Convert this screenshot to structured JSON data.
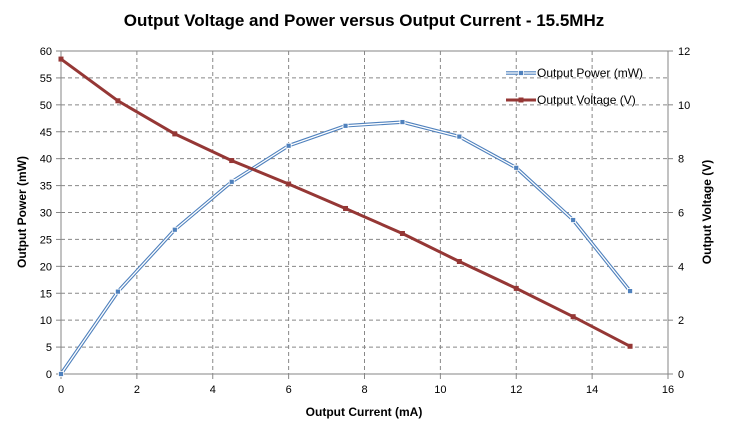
{
  "chart_data": {
    "type": "line",
    "title": "Output Voltage and Power versus Output Current - 15.5MHz",
    "xlabel": "Output Current (mA)",
    "ylabel_left": "Output Power (mW)",
    "ylabel_right": "Output Voltage (V)",
    "xlim": [
      0,
      16
    ],
    "ylim_left": [
      0,
      60
    ],
    "ylim_right": [
      0,
      12
    ],
    "x_ticks": [
      "0",
      "2",
      "4",
      "6",
      "8",
      "10",
      "12",
      "14",
      "16"
    ],
    "y_left_ticks": [
      "0",
      "5",
      "10",
      "15",
      "20",
      "25",
      "30",
      "35",
      "40",
      "45",
      "50",
      "55",
      "60"
    ],
    "y_right_ticks": [
      "0",
      "2",
      "4",
      "6",
      "8",
      "10",
      "12"
    ],
    "grid": true,
    "legend_position": "top-right",
    "x": [
      0,
      1.5,
      3,
      4.5,
      6,
      7.5,
      9,
      10.5,
      12,
      13.5,
      15
    ],
    "series": [
      {
        "name": "Output Power (mW)",
        "axis": "left",
        "color": "#4F81BD",
        "values": [
          0,
          15.3,
          26.8,
          35.7,
          42.4,
          46.1,
          46.8,
          44.1,
          38.3,
          28.6,
          15.4
        ]
      },
      {
        "name": "Output Voltage (V)",
        "axis": "right",
        "color": "#953735",
        "values": [
          11.7,
          10.15,
          8.92,
          7.93,
          7.06,
          6.15,
          5.22,
          4.18,
          3.18,
          2.13,
          1.03
        ]
      }
    ]
  }
}
